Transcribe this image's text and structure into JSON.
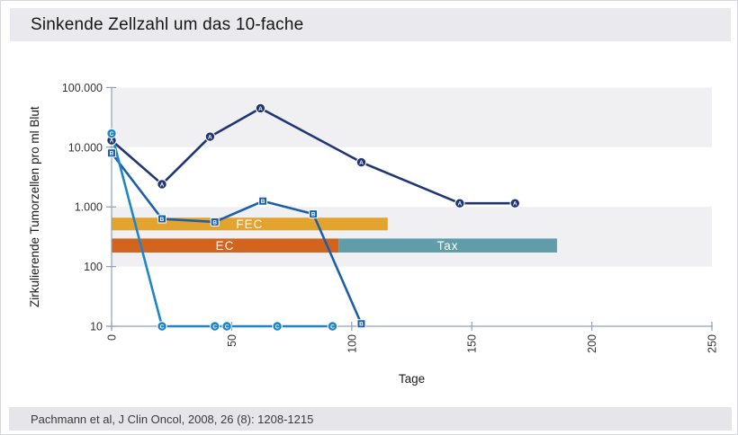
{
  "header": {
    "title": "Sinkende Zellzahl um das 10-fache"
  },
  "footer": {
    "citation": "Pachmann et al, J Clin Oncol, 2008, 26 (8): 1208-1215"
  },
  "chart_data": {
    "type": "line",
    "title": "Sinkende Zellzahl um das 10-fache",
    "xlabel": "Tage",
    "ylabel": "Zirkulierende Tumorzellen pro ml Blut",
    "xlim": [
      0,
      250
    ],
    "x_ticks": [
      0,
      50,
      100,
      150,
      200,
      250
    ],
    "y_scale": "log",
    "ylim": [
      10,
      100000
    ],
    "y_ticks": [
      10,
      100,
      1000,
      10000,
      100000
    ],
    "y_tick_labels": [
      "10",
      "100",
      "1.000",
      "10.000",
      "100.000"
    ],
    "grid": "off",
    "legend": "none",
    "shaded_decades": [
      [
        100,
        1000
      ],
      [
        10000,
        100000
      ]
    ],
    "band_color": "#f0f0f3",
    "axis_color": "#8fa0b8",
    "tick_label_color": "#333333",
    "series": [
      {
        "name": "A",
        "marker": "circle",
        "color": "#1f3574",
        "points": [
          [
            0,
            13000
          ],
          [
            21,
            2400
          ],
          [
            41,
            15000
          ],
          [
            62,
            45000
          ],
          [
            104,
            5600
          ],
          [
            145,
            1150
          ],
          [
            168,
            1150
          ]
        ]
      },
      {
        "name": "B",
        "marker": "square",
        "color": "#1c5fa9",
        "points": [
          [
            0,
            8000
          ],
          [
            21,
            630
          ],
          [
            43,
            560
          ],
          [
            63,
            1250
          ],
          [
            84,
            760
          ],
          [
            104,
            11
          ]
        ]
      },
      {
        "name": "C",
        "marker": "circle",
        "color": "#1e86c8",
        "points": [
          [
            0,
            17000
          ],
          [
            21,
            10
          ],
          [
            43,
            10
          ],
          [
            48,
            10
          ],
          [
            69,
            10
          ],
          [
            92,
            10
          ]
        ]
      }
    ],
    "treatment_bars": [
      {
        "label": "FEC",
        "color": "#e3a32f",
        "x_start": 0,
        "x_end": 115,
        "v_low": 405,
        "v_high": 660
      },
      {
        "label": "EC",
        "color": "#d2641d",
        "x_start": 0,
        "x_end": 94.5,
        "v_low": 172,
        "v_high": 295
      },
      {
        "label": "Tax",
        "color": "#609da9",
        "x_start": 94.5,
        "x_end": 185.5,
        "v_low": 172,
        "v_high": 295
      }
    ]
  }
}
